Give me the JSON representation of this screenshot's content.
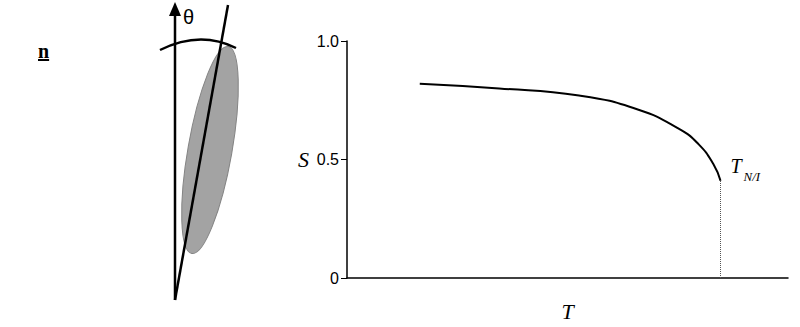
{
  "diagram": {
    "director_label": "n",
    "angle_label": "θ"
  },
  "chart_data": {
    "type": "line",
    "x_label": "T",
    "y_label": "S",
    "x": [
      16.5,
      34.5,
      52.6,
      66.1,
      75.2,
      79.7,
      83.1,
      84.7
    ],
    "values": [
      0.82,
      0.8,
      0.77,
      0.71,
      0.63,
      0.565,
      0.48,
      0.41
    ],
    "color": "#000000",
    "xlim": [
      0,
      100
    ],
    "ylim": [
      0,
      1
    ],
    "yticks": [
      0,
      0.5,
      {
        "value": 1,
        "label": "1.0"
      }
    ],
    "tick_labels": "y",
    "grid": false,
    "annotations": [
      {
        "text": "T",
        "subscript": "N/I",
        "x": 84.7,
        "line_style": "dotted"
      }
    ]
  }
}
